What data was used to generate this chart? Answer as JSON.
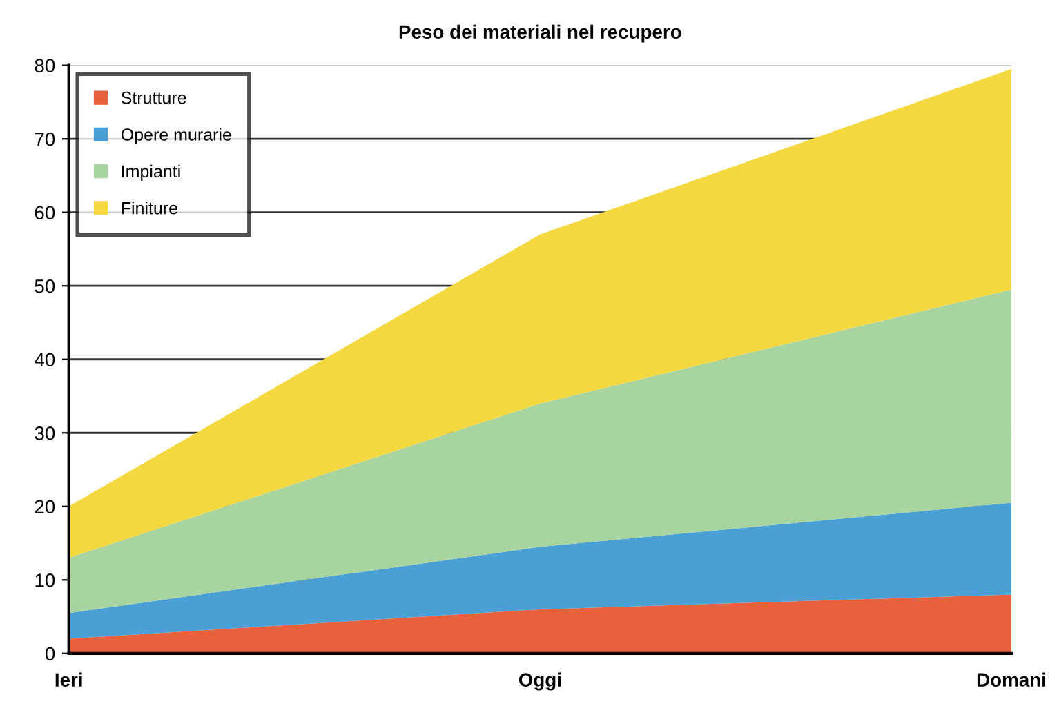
{
  "chart_data": {
    "type": "area",
    "stacked": true,
    "title": "Peso dei materiali nel recupero",
    "categories": [
      "Ieri",
      "Oggi",
      "Domani"
    ],
    "series": [
      {
        "name": "Strutture",
        "color": "#e8603c",
        "values": [
          2,
          6,
          8
        ]
      },
      {
        "name": "Opere murarie",
        "color": "#4a9fd4",
        "values": [
          3.5,
          8.5,
          12.5
        ]
      },
      {
        "name": "Impianti",
        "color": "#a8d4a0",
        "values": [
          7.5,
          19.5,
          29
        ]
      },
      {
        "name": "Finiture",
        "color": "#f5d840",
        "values": [
          7,
          23,
          30
        ]
      }
    ],
    "ylim": [
      0,
      80
    ],
    "yticks": [
      0,
      10,
      20,
      30,
      40,
      50,
      60,
      70,
      80
    ],
    "grid": "y",
    "legend": "top left"
  }
}
